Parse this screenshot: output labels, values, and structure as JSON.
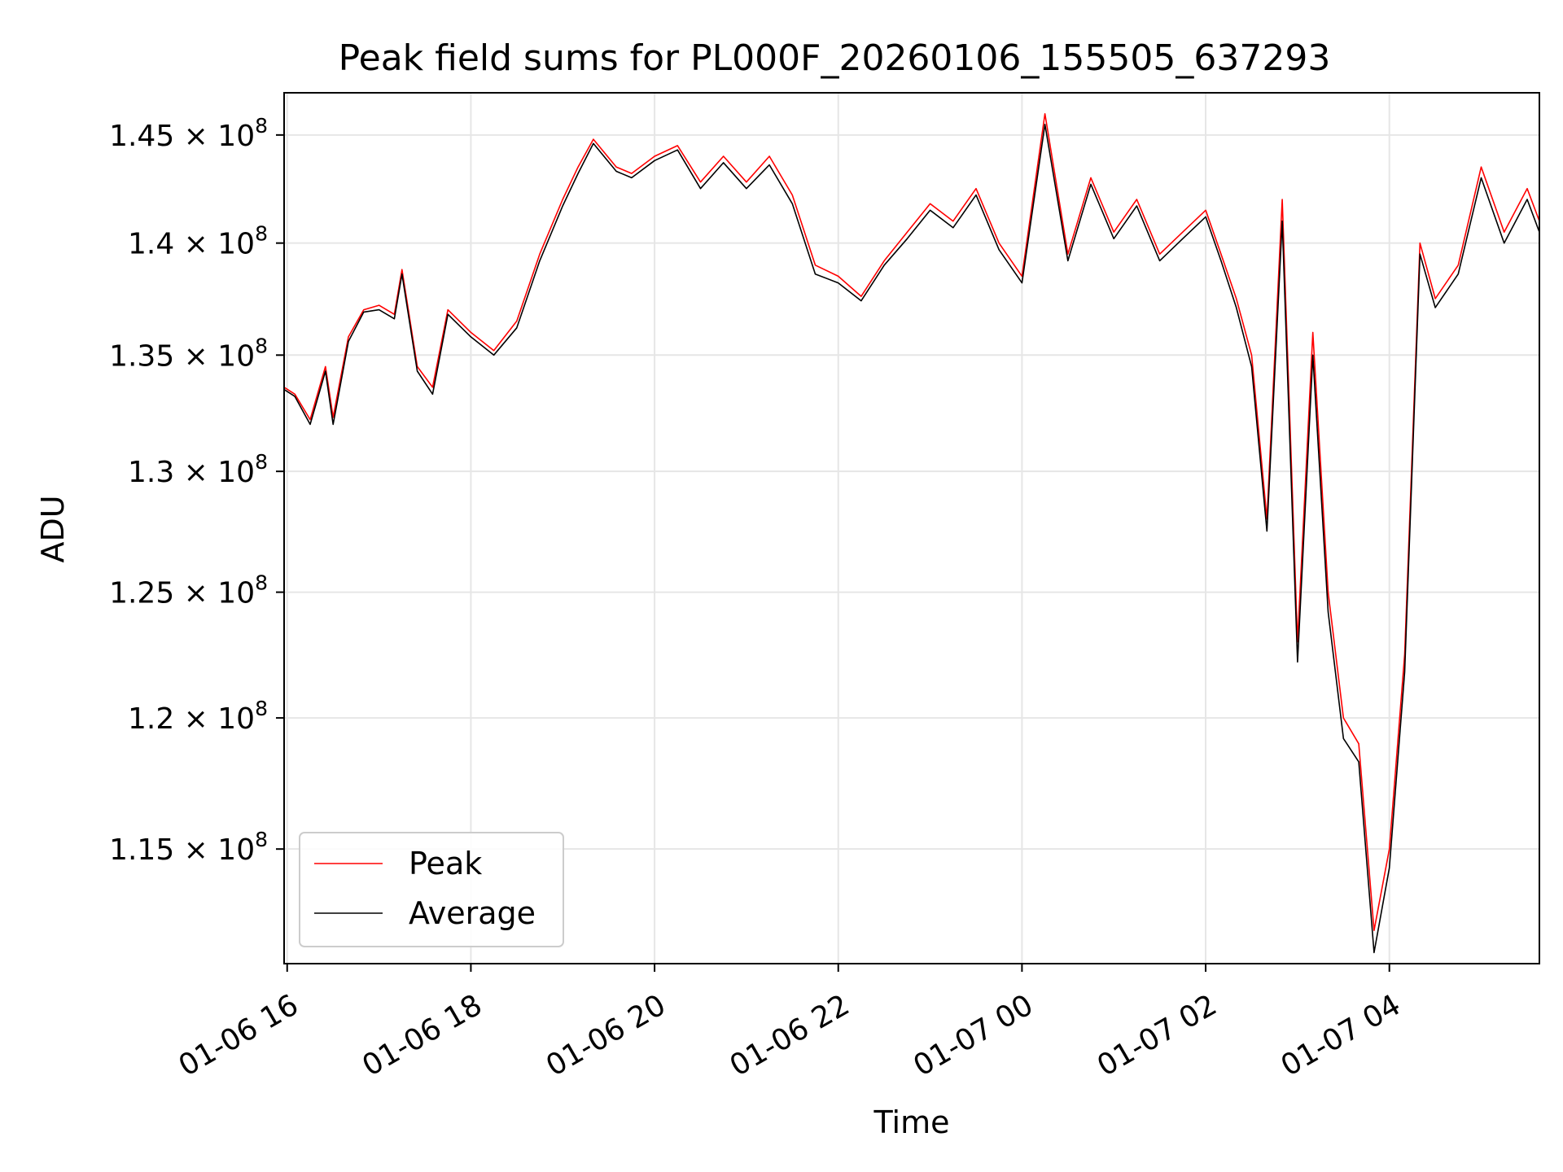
{
  "chart_data": {
    "type": "line",
    "title": "Peak field sums for PL000F_20260106_155505_637293",
    "xlabel": "Time",
    "ylabel": "ADU",
    "y_scale": "log",
    "xlim": [
      "2026-01-06 15:58",
      "2026-01-07 05:38"
    ],
    "ylim": [
      110800000.0,
      147000000.0
    ],
    "grid": true,
    "legend_position": "lower-left",
    "x_ticks": [
      {
        "value": "2026-01-06 16:00",
        "label": "01-06 16"
      },
      {
        "value": "2026-01-06 18:00",
        "label": "01-06 18"
      },
      {
        "value": "2026-01-06 20:00",
        "label": "01-06 20"
      },
      {
        "value": "2026-01-06 22:00",
        "label": "01-06 22"
      },
      {
        "value": "2026-01-07 00:00",
        "label": "01-07 00"
      },
      {
        "value": "2026-01-07 02:00",
        "label": "01-07 02"
      },
      {
        "value": "2026-01-07 04:00",
        "label": "01-07 04"
      }
    ],
    "y_ticks": [
      {
        "value": 115000000.0,
        "mantissa": "1.15"
      },
      {
        "value": 120000000.0,
        "mantissa": "1.2"
      },
      {
        "value": 125000000.0,
        "mantissa": "1.25"
      },
      {
        "value": 130000000.0,
        "mantissa": "1.3"
      },
      {
        "value": 135000000.0,
        "mantissa": "1.35"
      },
      {
        "value": 140000000.0,
        "mantissa": "1.4"
      },
      {
        "value": 145000000.0,
        "mantissa": "1.45"
      }
    ],
    "y_tick_suffix": "× 10",
    "y_tick_exponent": "8",
    "x": [
      "2026-01-06 15:58",
      "2026-01-06 16:05",
      "2026-01-06 16:15",
      "2026-01-06 16:25",
      "2026-01-06 16:30",
      "2026-01-06 16:40",
      "2026-01-06 16:50",
      "2026-01-06 17:00",
      "2026-01-06 17:10",
      "2026-01-06 17:15",
      "2026-01-06 17:25",
      "2026-01-06 17:35",
      "2026-01-06 17:45",
      "2026-01-06 18:00",
      "2026-01-06 18:15",
      "2026-01-06 18:30",
      "2026-01-06 18:45",
      "2026-01-06 19:00",
      "2026-01-06 19:10",
      "2026-01-06 19:20",
      "2026-01-06 19:35",
      "2026-01-06 19:45",
      "2026-01-06 20:00",
      "2026-01-06 20:15",
      "2026-01-06 20:30",
      "2026-01-06 20:45",
      "2026-01-06 21:00",
      "2026-01-06 21:15",
      "2026-01-06 21:30",
      "2026-01-06 21:45",
      "2026-01-06 22:00",
      "2026-01-06 22:15",
      "2026-01-06 22:30",
      "2026-01-06 22:45",
      "2026-01-06 23:00",
      "2026-01-06 23:15",
      "2026-01-06 23:30",
      "2026-01-06 23:45",
      "2026-01-07 00:00",
      "2026-01-07 00:15",
      "2026-01-07 00:30",
      "2026-01-07 00:45",
      "2026-01-07 01:00",
      "2026-01-07 01:15",
      "2026-01-07 01:30",
      "2026-01-07 01:45",
      "2026-01-07 02:00",
      "2026-01-07 02:10",
      "2026-01-07 02:20",
      "2026-01-07 02:30",
      "2026-01-07 02:40",
      "2026-01-07 02:50",
      "2026-01-07 03:00",
      "2026-01-07 03:10",
      "2026-01-07 03:20",
      "2026-01-07 03:30",
      "2026-01-07 03:40",
      "2026-01-07 03:50",
      "2026-01-07 04:00",
      "2026-01-07 04:10",
      "2026-01-07 04:20",
      "2026-01-07 04:30",
      "2026-01-07 04:45",
      "2026-01-07 05:00",
      "2026-01-07 05:15",
      "2026-01-07 05:30",
      "2026-01-07 05:38"
    ],
    "series": [
      {
        "name": "Peak",
        "color": "#ff0000",
        "values": [
          133600000.0,
          133300000.0,
          132200000.0,
          134500000.0,
          132300000.0,
          135800000.0,
          137000000.0,
          137200000.0,
          136800000.0,
          138800000.0,
          134500000.0,
          133600000.0,
          137000000.0,
          136000000.0,
          135200000.0,
          136500000.0,
          139500000.0,
          142000000.0,
          143500000.0,
          144800000.0,
          143500000.0,
          143200000.0,
          144000000.0,
          144500000.0,
          142800000.0,
          144000000.0,
          142800000.0,
          144000000.0,
          142200000.0,
          139000000.0,
          138500000.0,
          137600000.0,
          139200000.0,
          140500000.0,
          141800000.0,
          141000000.0,
          142500000.0,
          140000000.0,
          138500000.0,
          146000000.0,
          139500000.0,
          143000000.0,
          140500000.0,
          142000000.0,
          139500000.0,
          140500000.0,
          141500000.0,
          139500000.0,
          137500000.0,
          135000000.0,
          128000000.0,
          142000000.0,
          123000000.0,
          136000000.0,
          125000000.0,
          120000000.0,
          119000000.0,
          112000000.0,
          115000000.0,
          122500000.0,
          140000000.0,
          137500000.0,
          139000000.0,
          143500000.0,
          140500000.0,
          142500000.0,
          141000000.0
        ]
      },
      {
        "name": "Average",
        "color": "#000000",
        "values": [
          133500000.0,
          133200000.0,
          132000000.0,
          134300000.0,
          132000000.0,
          135600000.0,
          136900000.0,
          137000000.0,
          136600000.0,
          138600000.0,
          134300000.0,
          133300000.0,
          136800000.0,
          135800000.0,
          135000000.0,
          136200000.0,
          139200000.0,
          141700000.0,
          143200000.0,
          144600000.0,
          143300000.0,
          143000000.0,
          143800000.0,
          144300000.0,
          142500000.0,
          143700000.0,
          142500000.0,
          143600000.0,
          141800000.0,
          138600000.0,
          138200000.0,
          137400000.0,
          139000000.0,
          140200000.0,
          141500000.0,
          140700000.0,
          142200000.0,
          139700000.0,
          138200000.0,
          145500000.0,
          139200000.0,
          142700000.0,
          140200000.0,
          141700000.0,
          139200000.0,
          140200000.0,
          141200000.0,
          139200000.0,
          137100000.0,
          134500000.0,
          127500000.0,
          141000000.0,
          122200000.0,
          135000000.0,
          124200000.0,
          119200000.0,
          118300000.0,
          111200000.0,
          114300000.0,
          121800000.0,
          139500000.0,
          137100000.0,
          138600000.0,
          143000000.0,
          140000000.0,
          142000000.0,
          140500000.0
        ]
      }
    ]
  }
}
